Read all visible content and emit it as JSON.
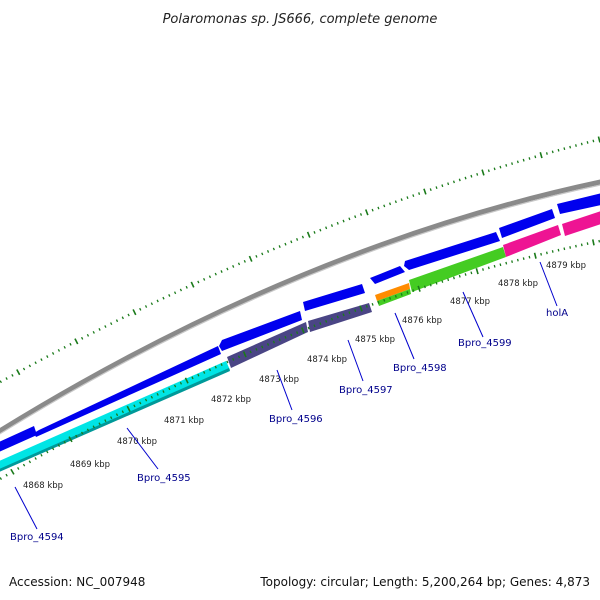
{
  "title": "Polaromonas sp. JS666, complete genome",
  "footer": {
    "accession": "Accession: NC_007948",
    "summary": "Topology: circular; Length: 5,200,264 bp; Genes: 4,873"
  },
  "kbp_labels": [
    "4868 kbp",
    "4869 kbp",
    "4870 kbp",
    "4871 kbp",
    "4872 kbp",
    "4873 kbp",
    "4874 kbp",
    "4875 kbp",
    "4876 kbp",
    "4877 kbp",
    "4878 kbp",
    "4879 kbp"
  ],
  "gene_labels": [
    "Bpro_4594",
    "Bpro_4595",
    "Bpro_4596",
    "Bpro_4597",
    "Bpro_4598",
    "Bpro_4599",
    "holA"
  ],
  "colors": {
    "backbone": "#808080",
    "cds": "#0000ee",
    "tick": "#1a7a1a",
    "label": "#00008b",
    "gene_cyan": "#00e5e5",
    "gene_slate": "#4a4585",
    "gene_orange": "#ff8c00",
    "gene_green": "#44cc22",
    "gene_pink": "#ee1493"
  }
}
